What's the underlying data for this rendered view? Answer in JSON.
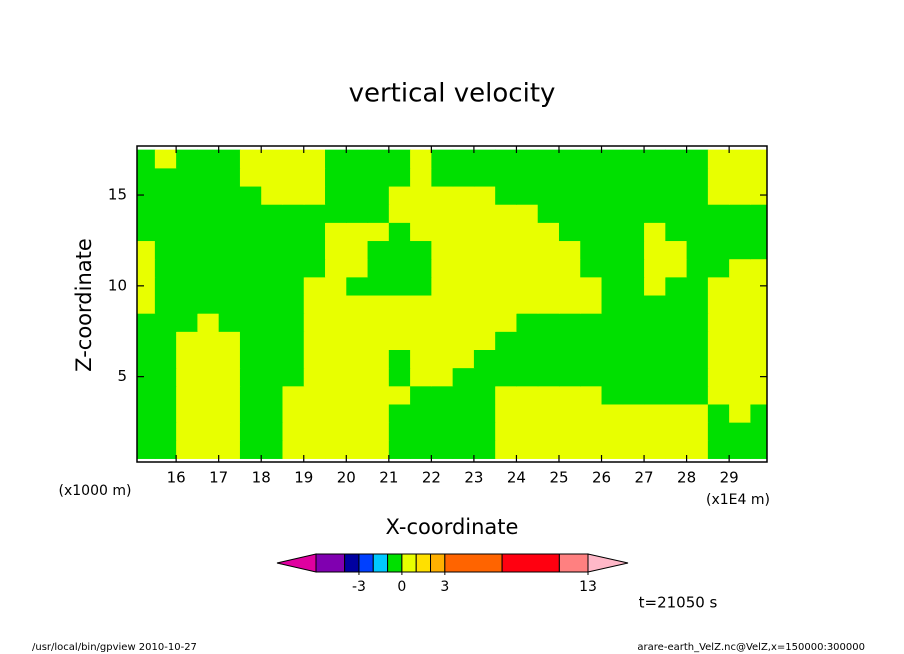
{
  "chart_data": {
    "type": "contour",
    "title": "vertical velocity",
    "xlabel": "X-coordinate",
    "ylabel": "Z-coordinate",
    "x_unit": "(x1E4 m)",
    "y_unit": "(x1000 m)",
    "annotation": "t=21050 s",
    "footer_left": "/usr/local/bin/gpview  2010-10-27",
    "footer_right": "arare-earth_VelZ.nc@VelZ,x=150000:300000",
    "xlim": [
      15.08,
      29.89
    ],
    "ylim": [
      0.3,
      17.7
    ],
    "xticks": [
      16,
      17,
      18,
      19,
      20,
      21,
      22,
      23,
      24,
      25,
      26,
      27,
      28,
      29
    ],
    "yticks": [
      5,
      10,
      15
    ],
    "x": [
      15.25,
      15.75,
      16.25,
      16.75,
      17.25,
      17.75,
      18.25,
      18.75,
      19.25,
      19.75,
      20.25,
      20.75,
      21.25,
      21.75,
      22.25,
      22.75,
      23.25,
      23.75,
      24.25,
      24.75,
      25.25,
      25.75,
      26.25,
      26.75,
      27.25,
      27.75,
      28.25,
      28.75,
      29.25,
      29.75
    ],
    "y": [
      1,
      2,
      3,
      4,
      5,
      6,
      7,
      8,
      9,
      10,
      11,
      12,
      13,
      14,
      15,
      16,
      17
    ],
    "z": [
      [
        -0.5,
        -0.5,
        0.5,
        0.5,
        0.5,
        -0.5,
        -0.5,
        0.5,
        0.5,
        0.5,
        0.5,
        0.5,
        -0.5,
        -0.5,
        -0.5,
        -0.5,
        -0.5,
        0.5,
        0.5,
        0.5,
        0.5,
        0.5,
        0.5,
        0.5,
        0.5,
        0.5,
        0.5,
        -0.5,
        -0.5,
        -0.5
      ],
      [
        -0.5,
        -0.5,
        0.5,
        0.5,
        0.5,
        -0.5,
        -0.5,
        0.5,
        0.5,
        0.5,
        0.5,
        0.5,
        -0.5,
        -0.5,
        -0.5,
        -0.5,
        -0.5,
        0.5,
        0.5,
        0.5,
        0.5,
        0.5,
        0.5,
        0.5,
        0.5,
        0.5,
        0.5,
        -0.5,
        -0.5,
        -0.5
      ],
      [
        -0.5,
        -0.5,
        0.5,
        0.5,
        0.5,
        -0.5,
        -0.5,
        0.5,
        0.5,
        0.5,
        0.5,
        0.5,
        -0.5,
        -0.5,
        -0.5,
        -0.5,
        -0.5,
        0.5,
        0.5,
        0.5,
        0.5,
        0.5,
        0.5,
        0.5,
        0.5,
        0.5,
        0.5,
        -0.5,
        0.5,
        -0.5
      ],
      [
        -0.5,
        -0.5,
        0.5,
        0.5,
        0.5,
        -0.5,
        -0.5,
        0.5,
        0.5,
        0.5,
        0.5,
        0.5,
        0.5,
        -0.5,
        -0.5,
        -0.5,
        -0.5,
        0.5,
        0.5,
        0.5,
        0.5,
        0.5,
        -0.5,
        -0.5,
        -0.5,
        -0.5,
        -0.5,
        0.5,
        0.5,
        0.5
      ],
      [
        -0.5,
        -0.5,
        0.5,
        0.5,
        0.5,
        -0.5,
        -0.5,
        -0.5,
        0.5,
        0.5,
        0.5,
        0.5,
        -0.5,
        0.5,
        0.5,
        -0.5,
        -0.5,
        -0.5,
        -0.5,
        -0.5,
        -0.5,
        -0.5,
        -0.5,
        -0.5,
        -0.5,
        -0.5,
        -0.5,
        0.5,
        0.5,
        0.5
      ],
      [
        -0.5,
        -0.5,
        0.5,
        0.5,
        0.5,
        -0.5,
        -0.5,
        -0.5,
        0.5,
        0.5,
        0.5,
        0.5,
        -0.5,
        0.5,
        0.5,
        0.5,
        -0.5,
        -0.5,
        -0.5,
        -0.5,
        -0.5,
        -0.5,
        -0.5,
        -0.5,
        -0.5,
        -0.5,
        -0.5,
        0.5,
        0.5,
        0.5
      ],
      [
        -0.5,
        -0.5,
        0.5,
        0.5,
        0.5,
        -0.5,
        -0.5,
        -0.5,
        0.5,
        0.5,
        0.5,
        0.5,
        0.5,
        0.5,
        0.5,
        0.5,
        0.5,
        -0.5,
        -0.5,
        -0.5,
        -0.5,
        -0.5,
        -0.5,
        -0.5,
        -0.5,
        -0.5,
        -0.5,
        0.5,
        0.5,
        0.5
      ],
      [
        -0.5,
        -0.5,
        -0.5,
        0.5,
        -0.5,
        -0.5,
        -0.5,
        -0.5,
        0.5,
        0.5,
        0.5,
        0.5,
        0.5,
        0.5,
        0.5,
        0.5,
        0.5,
        0.5,
        -0.5,
        -0.5,
        -0.5,
        -0.5,
        -0.5,
        -0.5,
        -0.5,
        -0.5,
        -0.5,
        0.5,
        0.5,
        0.5
      ],
      [
        0.5,
        -0.5,
        -0.5,
        -0.5,
        -0.5,
        -0.5,
        -0.5,
        -0.5,
        0.5,
        0.5,
        0.5,
        0.5,
        0.5,
        0.5,
        0.5,
        0.5,
        0.5,
        0.5,
        0.5,
        0.5,
        0.5,
        0.5,
        -0.5,
        -0.5,
        -0.5,
        -0.5,
        -0.5,
        0.5,
        0.5,
        0.5
      ],
      [
        0.5,
        -0.5,
        -0.5,
        -0.5,
        -0.5,
        -0.5,
        -0.5,
        -0.5,
        0.5,
        0.5,
        -0.5,
        -0.5,
        -0.5,
        -0.5,
        0.5,
        0.5,
        0.5,
        0.5,
        0.5,
        0.5,
        0.5,
        0.5,
        -0.5,
        -0.5,
        0.5,
        -0.5,
        -0.5,
        0.5,
        0.5,
        0.5
      ],
      [
        0.5,
        -0.5,
        -0.5,
        -0.5,
        -0.5,
        -0.5,
        -0.5,
        -0.5,
        -0.5,
        0.5,
        0.5,
        -0.5,
        -0.5,
        -0.5,
        0.5,
        0.5,
        0.5,
        0.5,
        0.5,
        0.5,
        0.5,
        -0.5,
        -0.5,
        -0.5,
        0.5,
        0.5,
        -0.5,
        -0.5,
        0.5,
        0.5
      ],
      [
        0.5,
        -0.5,
        -0.5,
        -0.5,
        -0.5,
        -0.5,
        -0.5,
        -0.5,
        -0.5,
        0.5,
        0.5,
        -0.5,
        -0.5,
        -0.5,
        0.5,
        0.5,
        0.5,
        0.5,
        0.5,
        0.5,
        0.5,
        -0.5,
        -0.5,
        -0.5,
        0.5,
        0.5,
        -0.5,
        -0.5,
        -0.5,
        -0.5
      ],
      [
        -0.5,
        -0.5,
        -0.5,
        -0.5,
        -0.5,
        -0.5,
        -0.5,
        -0.5,
        -0.5,
        0.5,
        0.5,
        0.5,
        -0.5,
        0.5,
        0.5,
        0.5,
        0.5,
        0.5,
        0.5,
        0.5,
        -0.5,
        -0.5,
        -0.5,
        -0.5,
        0.5,
        -0.5,
        -0.5,
        -0.5,
        -0.5,
        -0.5
      ],
      [
        -0.5,
        -0.5,
        -0.5,
        -0.5,
        -0.5,
        -0.5,
        -0.5,
        -0.5,
        -0.5,
        -0.5,
        -0.5,
        -0.5,
        0.5,
        0.5,
        0.5,
        0.5,
        0.5,
        0.5,
        0.5,
        -0.5,
        -0.5,
        -0.5,
        -0.5,
        -0.5,
        -0.5,
        -0.5,
        -0.5,
        -0.5,
        -0.5,
        -0.5
      ],
      [
        -0.5,
        -0.5,
        -0.5,
        -0.5,
        -0.5,
        -0.5,
        0.5,
        0.5,
        0.5,
        -0.5,
        -0.5,
        -0.5,
        0.5,
        0.5,
        0.5,
        0.5,
        0.5,
        -0.5,
        -0.5,
        -0.5,
        -0.5,
        -0.5,
        -0.5,
        -0.5,
        -0.5,
        -0.5,
        -0.5,
        0.5,
        0.5,
        0.5
      ],
      [
        -0.5,
        -0.5,
        -0.5,
        -0.5,
        -0.5,
        0.5,
        0.5,
        0.5,
        0.5,
        -0.5,
        -0.5,
        -0.5,
        -0.5,
        0.5,
        -0.5,
        -0.5,
        -0.5,
        -0.5,
        -0.5,
        -0.5,
        -0.5,
        -0.5,
        -0.5,
        -0.5,
        -0.5,
        -0.5,
        -0.5,
        0.5,
        0.5,
        0.5
      ],
      [
        -0.5,
        0.5,
        -0.5,
        -0.5,
        -0.5,
        0.5,
        0.5,
        0.5,
        0.5,
        -0.5,
        -0.5,
        -0.5,
        -0.5,
        0.5,
        -0.5,
        -0.5,
        -0.5,
        -0.5,
        -0.5,
        -0.5,
        -0.5,
        -0.5,
        -0.5,
        -0.5,
        -0.5,
        -0.5,
        -0.5,
        0.5,
        0.5,
        0.5
      ]
    ],
    "colorbar": {
      "levels": [
        -6,
        -4,
        -3,
        -2,
        -1,
        0,
        1,
        2,
        3,
        7,
        11,
        13
      ],
      "colors": [
        "#8000b0",
        "#0000a0",
        "#0040ff",
        "#00c8ff",
        "#00e000",
        "#e8ff00",
        "#ffe000",
        "#ffb000",
        "#ff6400",
        "#ff0010",
        "#ff8080"
      ],
      "under_color": "#e000a0",
      "over_color": "#ffb8c8",
      "ticks": [
        -3,
        0,
        3,
        13
      ]
    }
  }
}
